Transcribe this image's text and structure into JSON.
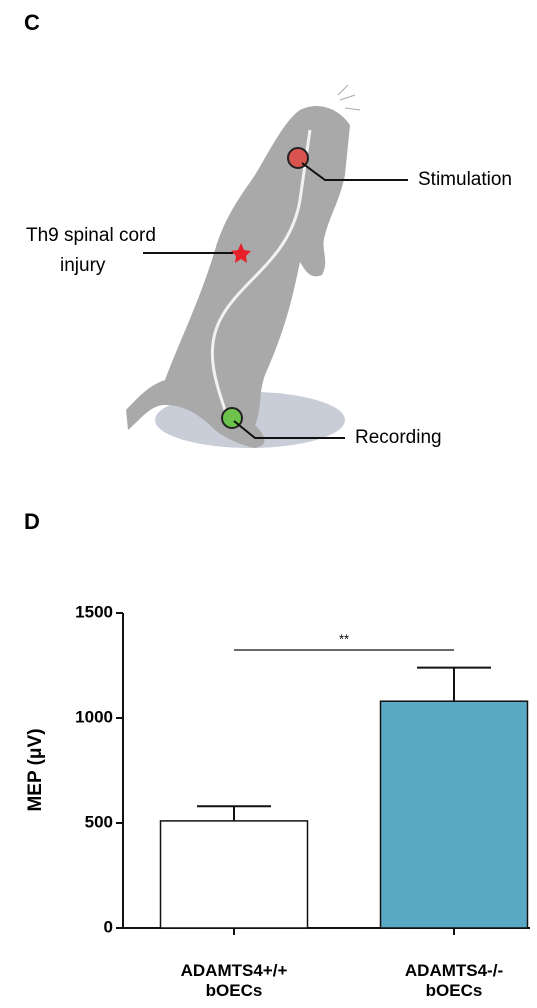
{
  "panels": {
    "c": "C",
    "d": "D"
  },
  "diagram": {
    "stimulation": "Stimulation",
    "injury_line1": "Th9  spinal  cord",
    "injury_line2": "injury",
    "recording": "Recording"
  },
  "chart_data": {
    "type": "bar",
    "ylabel": "MEP (μV)",
    "categories": [
      "ADAMTS4+/+ bOECs",
      "ADAMTS4-/- bOECs"
    ],
    "values": [
      510,
      1080
    ],
    "errors": [
      70,
      160
    ],
    "colors": [
      "#ffffff",
      "#5aa9c4"
    ],
    "ylim": [
      0,
      1500
    ],
    "yticks": [
      0,
      500,
      1000,
      1500
    ],
    "annotation": "**"
  }
}
